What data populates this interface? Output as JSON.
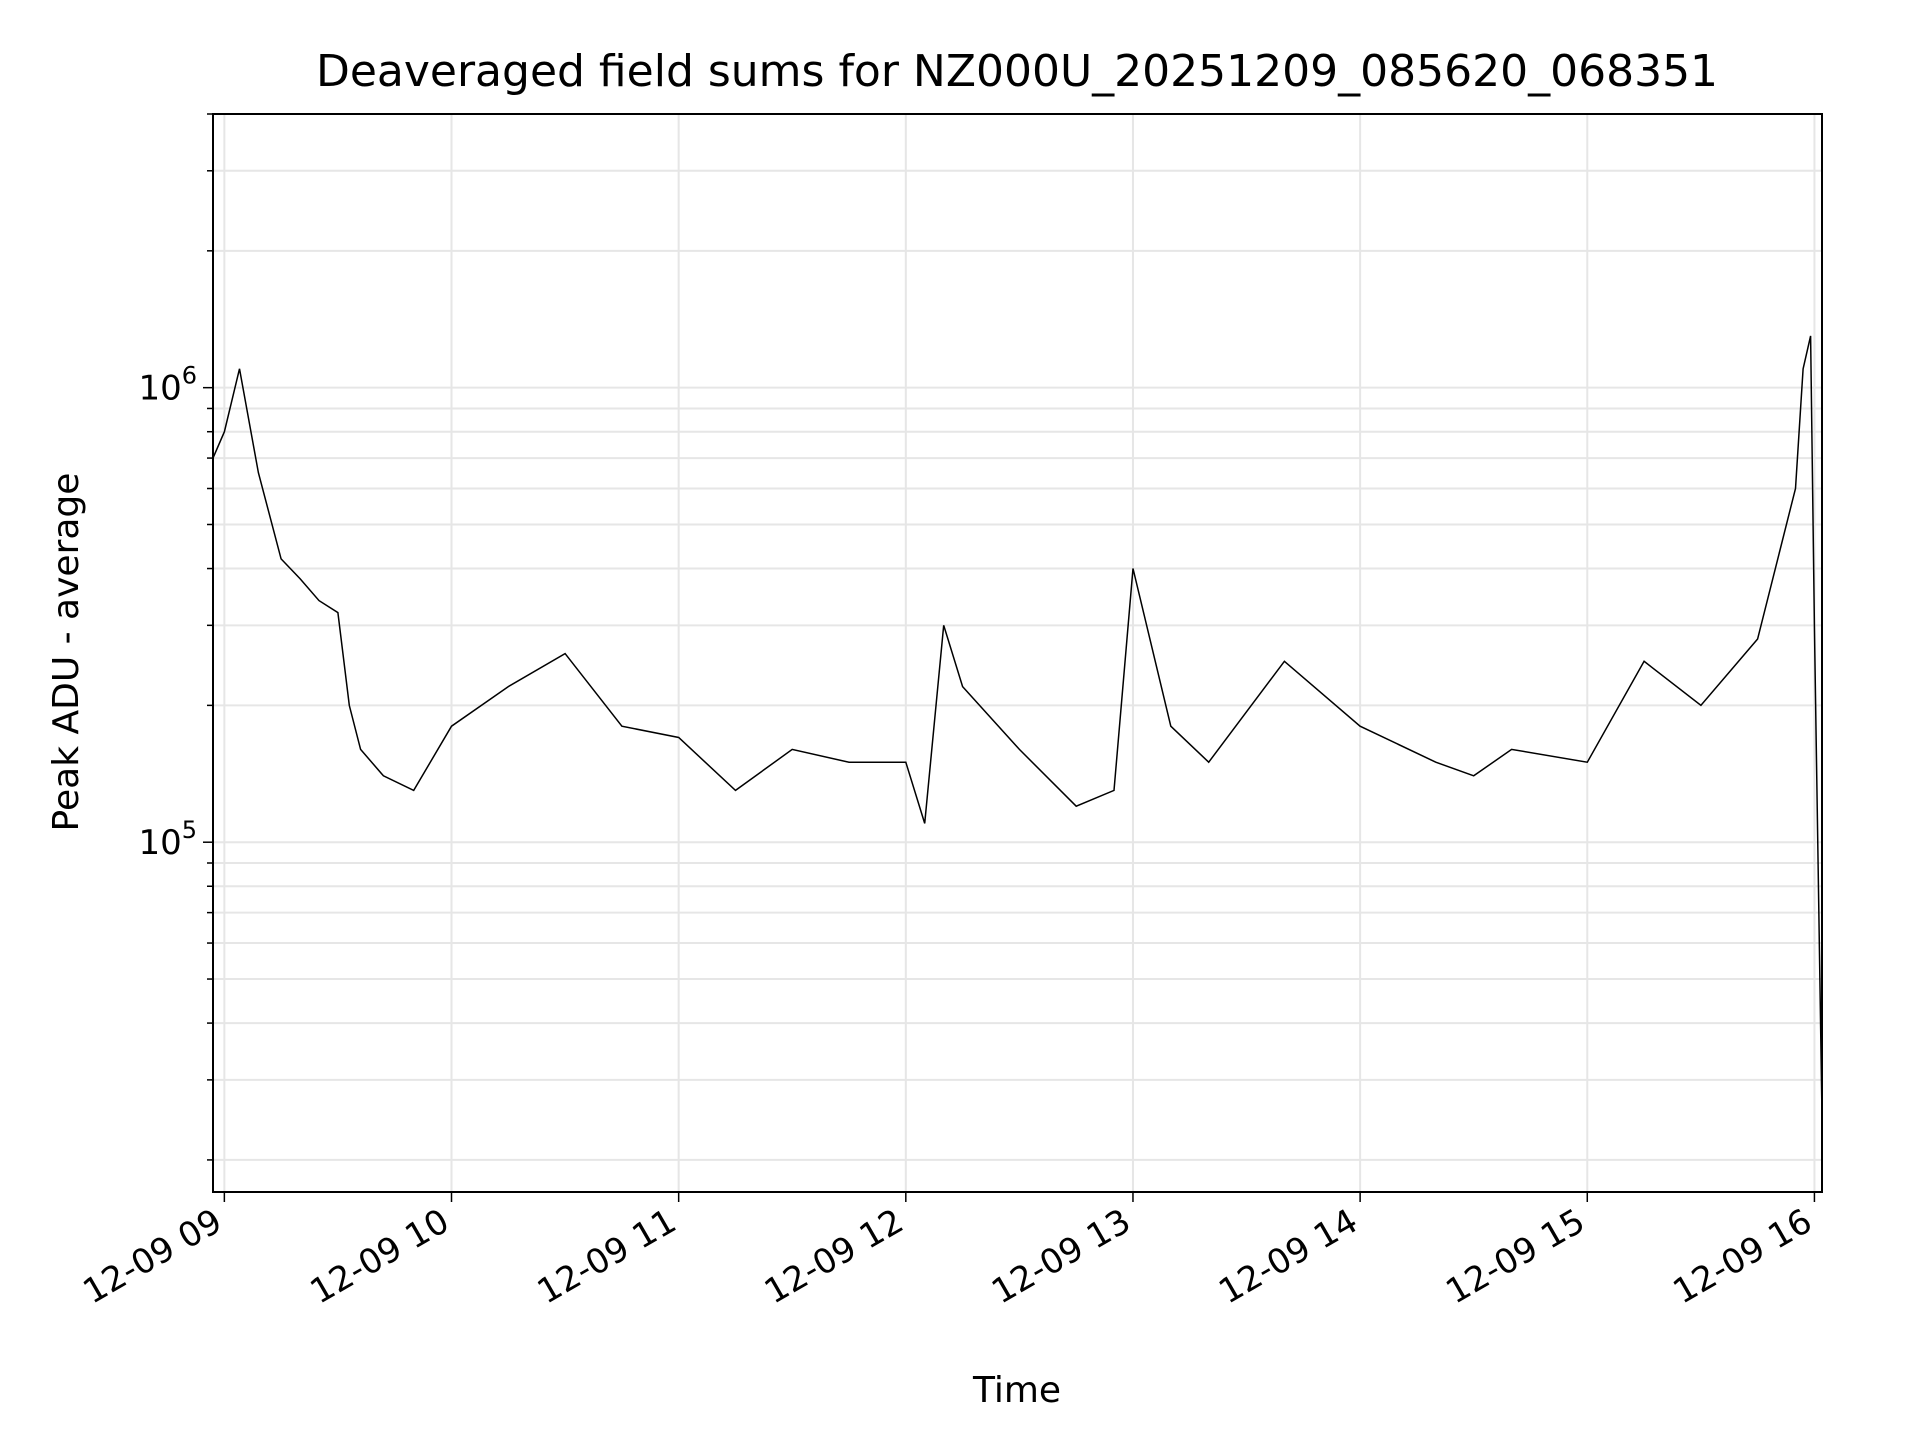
{
  "chart_data": {
    "type": "line",
    "title": "Deaveraged field sums for NZ000U_20251209_085620_068351",
    "xlabel": "Time",
    "ylabel": "Peak ADU - average",
    "yscale": "log",
    "ylim": [
      17000,
      4000000
    ],
    "xlim": [
      "2025-12-09 08:57",
      "2025-12-09 16:02"
    ],
    "grid": true,
    "line_color": "#000000",
    "x_ticks": [
      "12-09 09",
      "12-09 10",
      "12-09 11",
      "12-09 12",
      "12-09 13",
      "12-09 14",
      "12-09 15",
      "12-09 16"
    ],
    "y_ticks": [
      {
        "value": 100000,
        "base": "10",
        "exp": "5"
      },
      {
        "value": 1000000,
        "base": "10",
        "exp": "6"
      }
    ],
    "series": [
      {
        "x": [
          "2025-12-09 08:57",
          "2025-12-09 09:00",
          "2025-12-09 09:04",
          "2025-12-09 09:09",
          "2025-12-09 09:15",
          "2025-12-09 09:20",
          "2025-12-09 09:25",
          "2025-12-09 09:30",
          "2025-12-09 09:33",
          "2025-12-09 09:36",
          "2025-12-09 09:42",
          "2025-12-09 09:50",
          "2025-12-09 10:00",
          "2025-12-09 10:15",
          "2025-12-09 10:30",
          "2025-12-09 10:45",
          "2025-12-09 11:00",
          "2025-12-09 11:15",
          "2025-12-09 11:30",
          "2025-12-09 11:45",
          "2025-12-09 12:00",
          "2025-12-09 12:05",
          "2025-12-09 12:10",
          "2025-12-09 12:15",
          "2025-12-09 12:30",
          "2025-12-09 12:45",
          "2025-12-09 12:55",
          "2025-12-09 13:00",
          "2025-12-09 13:10",
          "2025-12-09 13:20",
          "2025-12-09 13:40",
          "2025-12-09 14:00",
          "2025-12-09 14:20",
          "2025-12-09 14:30",
          "2025-12-09 14:40",
          "2025-12-09 15:00",
          "2025-12-09 15:15",
          "2025-12-09 15:30",
          "2025-12-09 15:45",
          "2025-12-09 15:55",
          "2025-12-09 15:57",
          "2025-12-09 15:59",
          "2025-12-09 16:00",
          "2025-12-09 16:02"
        ],
        "y": [
          700000,
          800000,
          1100000,
          650000,
          420000,
          380000,
          340000,
          320000,
          200000,
          160000,
          140000,
          130000,
          180000,
          220000,
          260000,
          180000,
          170000,
          130000,
          160000,
          150000,
          150000,
          110000,
          300000,
          220000,
          160000,
          120000,
          130000,
          400000,
          180000,
          150000,
          250000,
          180000,
          150000,
          140000,
          160000,
          150000,
          250000,
          200000,
          280000,
          600000,
          1100000,
          1300000,
          300000,
          25000
        ]
      }
    ]
  }
}
